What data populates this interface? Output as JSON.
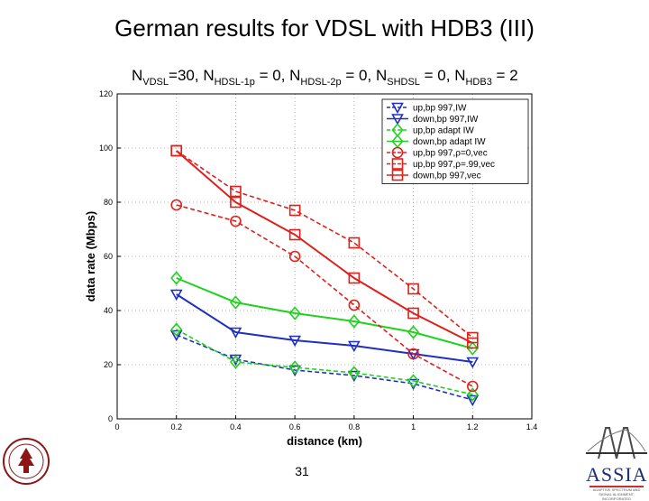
{
  "slide": {
    "title": "German results for VDSL with HDB3 (III)",
    "page_number": "31"
  },
  "formula": {
    "parts": [
      {
        "text": "N",
        "sub": "VDSL",
        "after": "=30, "
      },
      {
        "text": "N",
        "sub": "HDSL-1p",
        "after": " = 0, "
      },
      {
        "text": "N",
        "sub": "HDSL-2p",
        "after": " = 0, "
      },
      {
        "text": "N",
        "sub": "SHDSL",
        "after": " = 0, "
      },
      {
        "text": "N",
        "sub": "HDB3",
        "after": " = 2"
      }
    ]
  },
  "logos": {
    "left": "university-seal-logo",
    "right_text": "ASSIA",
    "right_subtext": "ADAPTIVE SPECTRUM AND SIGNAL ALIGNMENT, INCORPORATED"
  },
  "colors": {
    "blue": "#1f2fbf",
    "green": "#22d11f",
    "red": "#e0201b",
    "grid": "#9a9a9a"
  },
  "chart_data": {
    "type": "line",
    "title": "",
    "xlabel": "distance (km)",
    "ylabel": "data rate (Mbps)",
    "xlim": [
      0,
      1.4
    ],
    "ylim": [
      0,
      120
    ],
    "xticks": [
      "0",
      "0.2",
      "0.4",
      "0.6",
      "0.8",
      "1",
      "1.2",
      "1.4"
    ],
    "yticks": [
      "0",
      "20",
      "40",
      "60",
      "80",
      "100",
      "120"
    ],
    "grid": true,
    "legend_position": "top-right",
    "x": [
      0.2,
      0.4,
      0.6,
      0.8,
      1.0,
      1.2
    ],
    "series": [
      {
        "name": "up,bp 997,IW",
        "color": "blue",
        "dash": true,
        "marker": "triangle-down",
        "values": [
          31,
          22,
          18,
          16,
          13,
          7
        ]
      },
      {
        "name": "down,bp 997,IW",
        "color": "blue",
        "dash": false,
        "marker": "triangle-down",
        "values": [
          46,
          32,
          29,
          27,
          24,
          21
        ]
      },
      {
        "name": "up,bp adapt IW",
        "color": "green",
        "dash": true,
        "marker": "diamond",
        "values": [
          33,
          21,
          19,
          17,
          14,
          9
        ]
      },
      {
        "name": "down,bp adapt IW",
        "color": "green",
        "dash": false,
        "marker": "diamond",
        "values": [
          52,
          43,
          39,
          36,
          32,
          26
        ]
      },
      {
        "name": "up,bp 997,ρ=0,vec",
        "color": "red",
        "dash": true,
        "marker": "circle",
        "values": [
          79,
          73,
          60,
          42,
          24,
          12
        ]
      },
      {
        "name": "up,bp 997,ρ=.99,vec",
        "color": "red",
        "dash": true,
        "marker": "square",
        "values": [
          99,
          84,
          77,
          65,
          48,
          30
        ]
      },
      {
        "name": "down,bp 997,vec",
        "color": "red",
        "dash": false,
        "marker": "square",
        "values": [
          99,
          80,
          68,
          52,
          39,
          28
        ]
      }
    ]
  }
}
